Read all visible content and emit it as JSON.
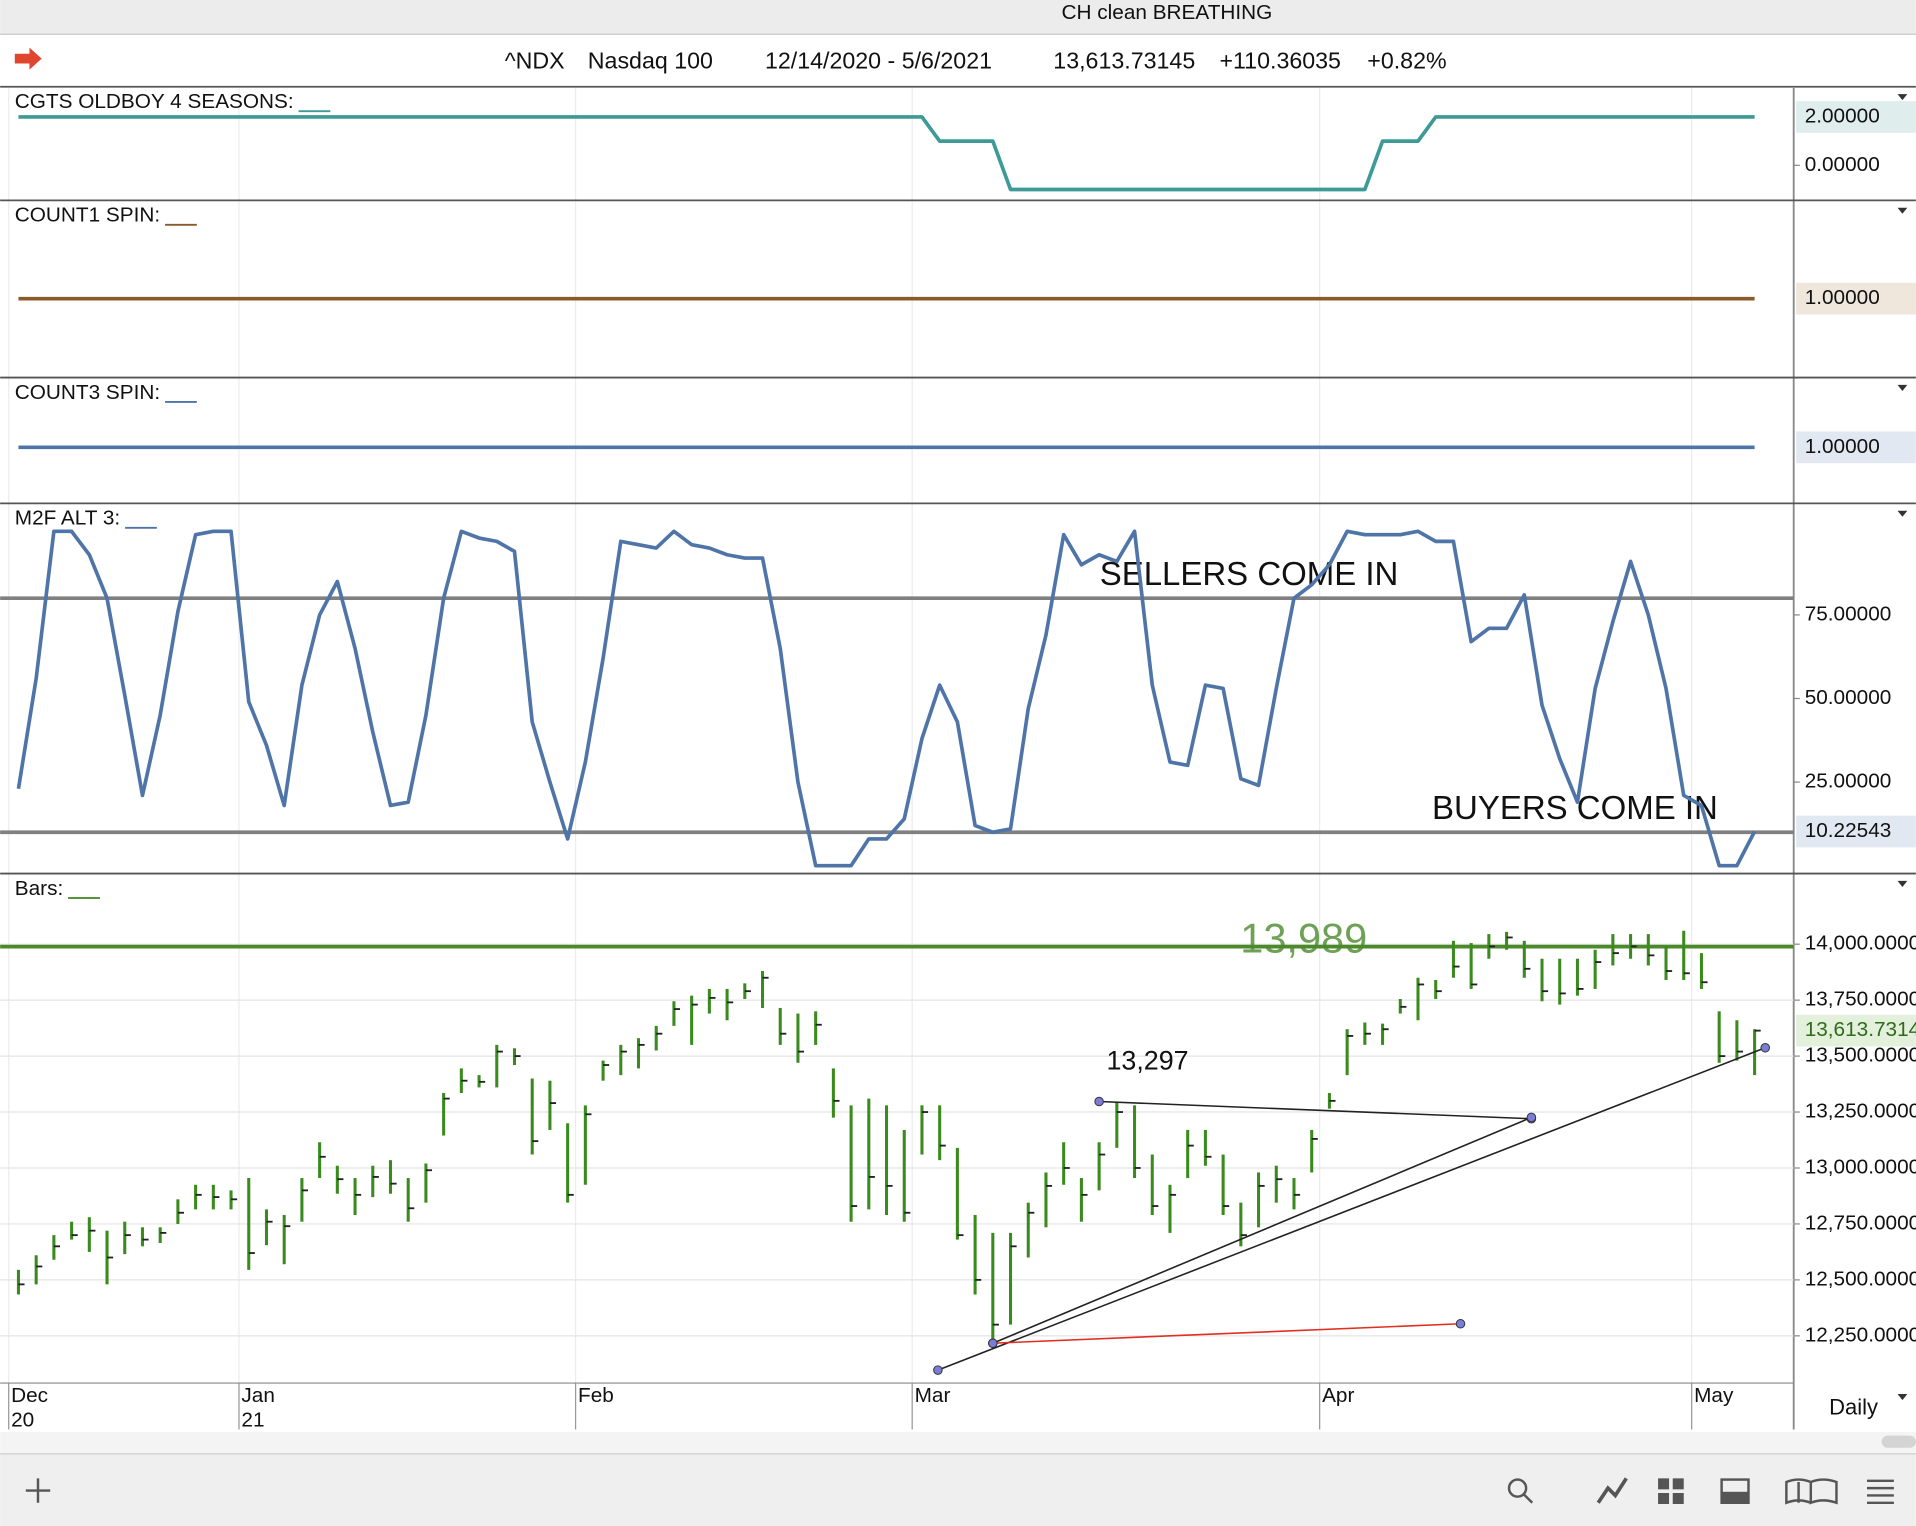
{
  "header": {
    "window_title": "CH clean BREATHING",
    "symbol": "^NDX",
    "name": "Nasdaq 100",
    "date_range": "12/14/2020 - 5/6/2021",
    "last": "13,613.73145",
    "change": "+110.36035",
    "change_pct": "+0.82%"
  },
  "timeframe": "Daily",
  "chart_data": [
    {
      "type": "line",
      "title": "CGTS OLDBOY 4 SEASONS:",
      "series": [
        {
          "color": "#3d9a96",
          "values": [
            2,
            2,
            2,
            2,
            2,
            2,
            2,
            2,
            2,
            2,
            2,
            2,
            2,
            2,
            2,
            2,
            2,
            2,
            2,
            2,
            2,
            2,
            2,
            2,
            2,
            2,
            2,
            2,
            2,
            2,
            2,
            2,
            2,
            2,
            2,
            2,
            2,
            2,
            2,
            2,
            2,
            2,
            2,
            2,
            2,
            2,
            2,
            2,
            2,
            2,
            2,
            2,
            1,
            1,
            1,
            1,
            -1,
            -1,
            -1,
            -1,
            -1,
            -1,
            -1,
            -1,
            -1,
            -1,
            -1,
            -1,
            -1,
            -1,
            -1,
            -1,
            -1,
            -1,
            -1,
            -1,
            -1,
            1,
            1,
            1,
            2,
            2,
            2,
            2,
            2,
            2,
            2,
            2,
            2,
            2,
            2,
            2,
            2,
            2,
            2,
            2,
            2,
            2,
            2
          ]
        }
      ],
      "ylim": [
        -1.4,
        3.2
      ],
      "yticks": [
        {
          "value": 0,
          "label": "0.00000"
        }
      ],
      "last_value_label": "2.00000"
    },
    {
      "type": "line",
      "title": "COUNT1 SPIN:",
      "series": [
        {
          "color": "#8a5a2b",
          "values": [
            1,
            1,
            1,
            1,
            1,
            1,
            1,
            1,
            1,
            1,
            1,
            1,
            1,
            1,
            1,
            1,
            1,
            1,
            1,
            1,
            1,
            1,
            1,
            1,
            1,
            1,
            1,
            1,
            1,
            1,
            1,
            1,
            1,
            1,
            1,
            1,
            1,
            1,
            1,
            1,
            1,
            1,
            1,
            1,
            1,
            1,
            1,
            1,
            1,
            1,
            1,
            1,
            1,
            1,
            1,
            1,
            1,
            1,
            1,
            1,
            1,
            1,
            1,
            1,
            1,
            1,
            1,
            1,
            1,
            1,
            1,
            1,
            1,
            1,
            1,
            1,
            1,
            1,
            1,
            1,
            1,
            1,
            1,
            1,
            1,
            1,
            1,
            1,
            1,
            1,
            1,
            1,
            1,
            1,
            1,
            1,
            1,
            1,
            1
          ]
        }
      ],
      "ylim": [
        0.2,
        2
      ],
      "yticks": [],
      "last_value_label": "1.00000"
    },
    {
      "type": "line",
      "title": "COUNT3 SPIN:",
      "series": [
        {
          "color": "#4f74a8",
          "values": [
            1,
            1,
            1,
            1,
            1,
            1,
            1,
            1,
            1,
            1,
            1,
            1,
            1,
            1,
            1,
            1,
            1,
            1,
            1,
            1,
            1,
            1,
            1,
            1,
            1,
            1,
            1,
            1,
            1,
            1,
            1,
            1,
            1,
            1,
            1,
            1,
            1,
            1,
            1,
            1,
            1,
            1,
            1,
            1,
            1,
            1,
            1,
            1,
            1,
            1,
            1,
            1,
            1,
            1,
            1,
            1,
            1,
            1,
            1,
            1,
            1,
            1,
            1,
            1,
            1,
            1,
            1,
            1,
            1,
            1,
            1,
            1,
            1,
            1,
            1,
            1,
            1,
            1,
            1,
            1,
            1,
            1,
            1,
            1,
            1,
            1,
            1,
            1,
            1,
            1,
            1,
            1,
            1,
            1,
            1,
            1,
            1,
            1,
            1
          ]
        }
      ],
      "ylim": [
        0.2,
        2
      ],
      "yticks": [],
      "last_value_label": "1.00000"
    },
    {
      "type": "line",
      "title": "M2F ALT 3:",
      "series": [
        {
          "color": "#4f74a8",
          "values": [
            23,
            56,
            100,
            100,
            93,
            80,
            51,
            21,
            45,
            76,
            99,
            100,
            100,
            49,
            36,
            18,
            54,
            75,
            85,
            65,
            40,
            18,
            19,
            45,
            80,
            100,
            98,
            97,
            94,
            43,
            25,
            8,
            31,
            62,
            97,
            96,
            95,
            100,
            96,
            95,
            93,
            92,
            92,
            65,
            25,
            0,
            0,
            0,
            8,
            8,
            14,
            38,
            54,
            43,
            12,
            10,
            11,
            47,
            69,
            99,
            90,
            93,
            91,
            100,
            54,
            31,
            30,
            54,
            53,
            26,
            24,
            53,
            80,
            84,
            90,
            100,
            99,
            99,
            99,
            100,
            97,
            97,
            67,
            71,
            71,
            81,
            48,
            32,
            19,
            53,
            73,
            91,
            75,
            53,
            21,
            18,
            0,
            0,
            10.22543
          ]
        }
      ],
      "ylim": [
        -2,
        108
      ],
      "yticks": [
        {
          "value": 75,
          "label": "75.00000"
        },
        {
          "value": 50,
          "label": "50.00000"
        },
        {
          "value": 25,
          "label": "25.00000"
        }
      ],
      "last_value_label": "10.22543",
      "reference_lines": [
        {
          "value": 80,
          "label": "SELLERS COME IN",
          "color": "#808080"
        },
        {
          "value": 10,
          "label": "BUYERS COME IN",
          "color": "#808080"
        }
      ]
    },
    {
      "type": "ohlc",
      "title": "Bars:",
      "grid": true,
      "categories": [
        "Dec",
        null,
        null,
        null,
        null,
        null,
        null,
        null,
        null,
        null,
        null,
        null,
        null,
        "Jan",
        null,
        null,
        null,
        null,
        null,
        null,
        null,
        null,
        null,
        null,
        null,
        null,
        null,
        null,
        null,
        null,
        null,
        null,
        "Feb",
        null,
        null,
        null,
        null,
        null,
        null,
        null,
        null,
        null,
        null,
        null,
        null,
        null,
        null,
        null,
        null,
        null,
        null,
        "Mar",
        null,
        null,
        null,
        null,
        null,
        null,
        null,
        null,
        null,
        null,
        null,
        null,
        null,
        null,
        null,
        null,
        null,
        null,
        null,
        null,
        null,
        null,
        "Apr",
        null,
        null,
        null,
        null,
        null,
        null,
        null,
        null,
        null,
        null,
        null,
        null,
        null,
        null,
        null,
        null,
        null,
        null,
        null,
        null,
        "May",
        null,
        null,
        null
      ],
      "category_years": [
        "20",
        null,
        null,
        null,
        null,
        null,
        null,
        null,
        null,
        null,
        null,
        null,
        null,
        "21",
        null,
        null,
        null,
        null,
        null,
        null,
        null,
        null,
        null,
        null,
        null,
        null,
        null,
        null,
        null,
        null,
        null,
        null,
        null,
        null,
        null,
        null,
        null,
        null,
        null,
        null,
        null,
        null,
        null,
        null,
        null,
        null,
        null,
        null,
        null,
        null,
        null,
        null,
        null,
        null,
        null,
        null,
        null,
        null,
        null,
        null,
        null,
        null,
        null,
        null,
        null,
        null,
        null,
        null,
        null,
        null,
        null,
        null,
        null,
        null,
        null,
        null,
        null,
        null,
        null,
        null,
        null,
        null,
        null,
        null,
        null,
        null,
        null,
        null,
        null,
        null,
        null,
        null,
        null,
        null,
        null,
        null,
        null,
        null,
        null
      ],
      "series": [
        {
          "color": "#3a8a1e",
          "high": [
            12545,
            12610,
            12700,
            12760,
            12780,
            12720,
            12760,
            12735,
            12735,
            12860,
            12925,
            12925,
            12900,
            12955,
            12815,
            12790,
            12955,
            13115,
            13010,
            12955,
            13010,
            13035,
            12955,
            13020,
            13335,
            13445,
            13415,
            13550,
            13535,
            13400,
            13390,
            13200,
            13280,
            13480,
            13550,
            13580,
            13635,
            13745,
            13770,
            13800,
            13800,
            13825,
            13880,
            13715,
            13690,
            13700,
            13445,
            13280,
            13310,
            13280,
            13170,
            13280,
            13280,
            13090,
            12790,
            12710,
            12710,
            12845,
            12980,
            13115,
            12955,
            13115,
            13295,
            13280,
            13060,
            12925,
            13170,
            13170,
            13060,
            12845,
            12980,
            13010,
            12955,
            13170,
            13335,
            13620,
            13650,
            13645,
            13755,
            13850,
            13840,
            14015,
            14005,
            14045,
            14055,
            14015,
            13935,
            13935,
            13935,
            13975,
            14045,
            14045,
            14045,
            13990,
            14060,
            13960,
            13700,
            13660,
            13620
          ],
          "low": [
            12435,
            12480,
            12590,
            12680,
            12625,
            12480,
            12615,
            12650,
            12665,
            12750,
            12815,
            12815,
            12815,
            12545,
            12655,
            12570,
            12760,
            12955,
            12885,
            12790,
            12870,
            12885,
            12760,
            12845,
            13145,
            13335,
            13360,
            13360,
            13460,
            13060,
            13170,
            12845,
            12925,
            13390,
            13415,
            13445,
            13525,
            13635,
            13550,
            13690,
            13660,
            13755,
            13715,
            13550,
            13470,
            13550,
            13225,
            12760,
            12815,
            12790,
            12760,
            13060,
            13035,
            12680,
            12435,
            12215,
            12300,
            12600,
            12735,
            12925,
            12760,
            12900,
            13090,
            12955,
            12790,
            12710,
            12955,
            13010,
            12790,
            12650,
            12735,
            12845,
            12815,
            12980,
            13265,
            13415,
            13550,
            13550,
            13690,
            13660,
            13755,
            13850,
            13800,
            13935,
            13975,
            13850,
            13745,
            13730,
            13770,
            13800,
            13905,
            13935,
            13905,
            13840,
            13840,
            13800,
            13470,
            13480,
            13415
          ],
          "close": [
            12480,
            12560,
            12650,
            12700,
            12720,
            12600,
            12700,
            12680,
            12710,
            12800,
            12880,
            12870,
            12860,
            12620,
            12760,
            12740,
            12900,
            13050,
            12950,
            12880,
            12960,
            12930,
            12820,
            12990,
            13310,
            13390,
            13385,
            13520,
            13500,
            13120,
            13290,
            12880,
            13240,
            13460,
            13520,
            13550,
            13600,
            13710,
            13730,
            13760,
            13740,
            13790,
            13850,
            13600,
            13520,
            13640,
            13300,
            12830,
            12960,
            12920,
            12800,
            13250,
            13100,
            12700,
            12500,
            12300,
            12650,
            12800,
            12920,
            13000,
            12880,
            13060,
            13250,
            13000,
            12830,
            12880,
            13100,
            13050,
            12830,
            12700,
            12920,
            12950,
            12880,
            13130,
            13300,
            13590,
            13600,
            13620,
            13720,
            13820,
            13790,
            13900,
            13820,
            13990,
            14030,
            13890,
            13790,
            13780,
            13800,
            13920,
            13960,
            13990,
            13950,
            13880,
            13870,
            13830,
            13500,
            13520,
            13613.73145
          ]
        }
      ],
      "ylim": [
        12050,
        14310
      ],
      "yticks": [
        {
          "value": 14000,
          "label": "14,000.0000"
        },
        {
          "value": 13750,
          "label": "13,750.0000"
        },
        {
          "value": 13500,
          "label": "13,500.0000"
        },
        {
          "value": 13250,
          "label": "13,250.0000"
        },
        {
          "value": 13000,
          "label": "13,000.0000"
        },
        {
          "value": 12750,
          "label": "12,750.0000"
        },
        {
          "value": 12500,
          "label": "12,500.0000"
        },
        {
          "value": 12250,
          "label": "12,250.0000"
        }
      ],
      "last_value_label": "13,613.7314",
      "reference_lines": [
        {
          "value": 13989,
          "label": "13,989",
          "color": "#4a8a2a"
        }
      ],
      "trendlines": [
        {
          "x": [
            61,
            85.4
          ],
          "y": [
            13297,
            13220
          ],
          "color": "#222222",
          "label": "13,297"
        },
        {
          "x": [
            55,
            85.4
          ],
          "y": [
            12217,
            13226
          ],
          "color": "#222222"
        },
        {
          "x": [
            51.9,
            98.6
          ],
          "y": [
            12097,
            13537
          ],
          "color": "#222222"
        },
        {
          "x": [
            55,
            81.4
          ],
          "y": [
            12217,
            12304
          ],
          "color": "#e03020"
        }
      ]
    }
  ]
}
